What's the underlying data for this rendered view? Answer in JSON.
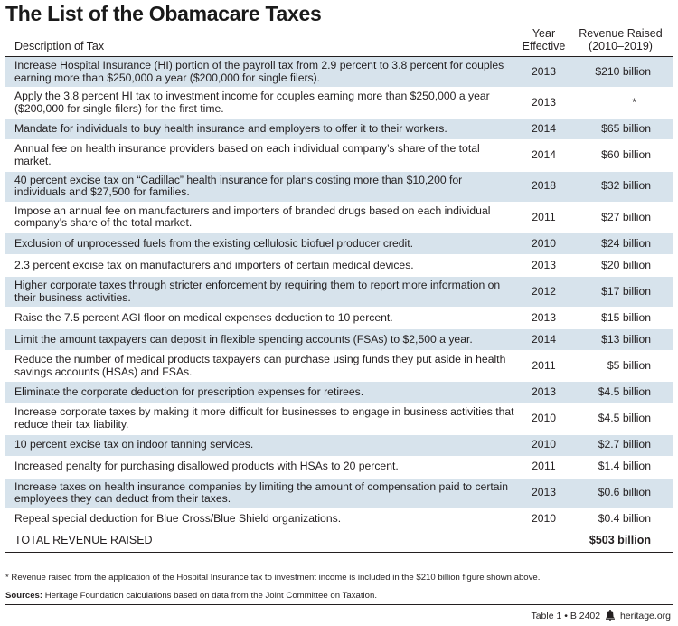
{
  "title": "The List of the Obamacare Taxes",
  "headers": {
    "description": "Description of Tax",
    "year_line1": "Year",
    "year_line2": "Effective",
    "revenue_line1": "Revenue Raised",
    "revenue_line2": "(2010–2019)"
  },
  "rows": [
    {
      "desc": "Increase Hospital Insurance (HI) portion of the payroll tax from 2.9 percent to 3.8 percent for couples earning more than $250,000 a year ($200,000 for single filers).",
      "year": "2013",
      "revenue": "$210 billion"
    },
    {
      "desc": "Apply the 3.8 percent HI tax to investment income for couples earning more than $250,000 a year ($200,000 for single filers) for the first time.",
      "year": "2013",
      "revenue": "*"
    },
    {
      "desc": "Mandate for individuals to buy health insurance and employers to offer it to their workers.",
      "year": "2014",
      "revenue": "$65 billion"
    },
    {
      "desc": "Annual fee on health insurance providers based on each individual company’s share of the total market.",
      "year": "2014",
      "revenue": "$60 billion"
    },
    {
      "desc": "40 percent excise tax on “Cadillac” health insurance for plans costing more than $10,200 for individuals and $27,500 for families.",
      "year": "2018",
      "revenue": "$32 billion"
    },
    {
      "desc": "Impose an annual fee on manufacturers and importers of branded drugs based on each individual company’s share of the total market.",
      "year": "2011",
      "revenue": "$27 billion"
    },
    {
      "desc": "Exclusion of unprocessed fuels from the existing cellulosic biofuel producer credit.",
      "year": "2010",
      "revenue": "$24 billion"
    },
    {
      "desc": "2.3 percent excise tax on manufacturers and importers of certain medical devices.",
      "year": "2013",
      "revenue": "$20 billion"
    },
    {
      "desc": "Higher corporate taxes through stricter enforcement by requiring them to report more information on their business activities.",
      "year": "2012",
      "revenue": "$17 billion"
    },
    {
      "desc": "Raise the 7.5 percent AGI floor on medical expenses deduction to 10 percent.",
      "year": "2013",
      "revenue": "$15 billion"
    },
    {
      "desc": "Limit the amount taxpayers can deposit in flexible spending accounts (FSAs) to $2,500 a year.",
      "year": "2014",
      "revenue": "$13 billion"
    },
    {
      "desc": "Reduce the number of medical products taxpayers can purchase using funds they put aside in health savings accounts (HSAs) and FSAs.",
      "year": "2011",
      "revenue": "$5 billion"
    },
    {
      "desc": "Eliminate the corporate deduction for prescription expenses for retirees.",
      "year": "2013",
      "revenue": "$4.5 billion"
    },
    {
      "desc": "Increase corporate taxes by making it more difficult for businesses to engage in business activities that reduce their tax liability.",
      "year": "2010",
      "revenue": "$4.5 billion"
    },
    {
      "desc": "10 percent excise tax on indoor tanning services.",
      "year": "2010",
      "revenue": "$2.7 billion"
    },
    {
      "desc": "Increased penalty for purchasing disallowed products with HSAs to 20 percent.",
      "year": "2011",
      "revenue": "$1.4 billion"
    },
    {
      "desc": "Increase taxes on health insurance companies by limiting the amount of compensation paid to certain employees they can deduct from their taxes.",
      "year": "2013",
      "revenue": "$0.6 billion"
    },
    {
      "desc": "Repeal special deduction for Blue Cross/Blue Shield organizations.",
      "year": "2010",
      "revenue": "$0.4 billion"
    }
  ],
  "total": {
    "label": "TOTAL REVENUE RAISED",
    "revenue": "$503 billion"
  },
  "footnote": "* Revenue raised from the application of the Hospital Insurance tax to investment income is included in the $210 billion figure shown above.",
  "sources_label": "Sources:",
  "sources_text": " Heritage Foundation calculations based on data from the Joint Committee on Taxation.",
  "footer": {
    "table_ref": "Table 1 • B 2402",
    "site": "heritage.org"
  },
  "colors": {
    "row_shade": "#d7e3ec",
    "text": "#231f20"
  }
}
